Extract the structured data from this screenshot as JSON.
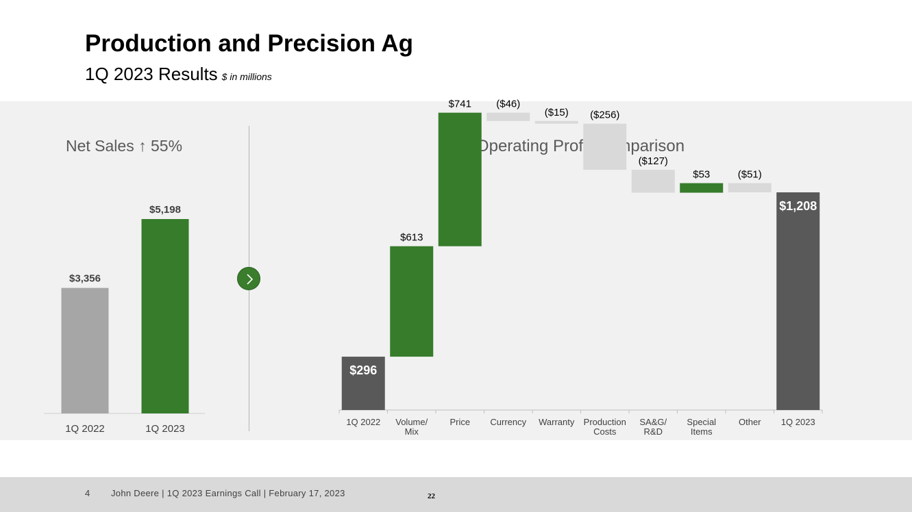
{
  "header": {
    "title": "Production and Precision Ag",
    "subtitle": "1Q 2023 Results",
    "units": "$ in millions"
  },
  "left_panel": {
    "title": "Net Sales ↑ 55%",
    "arrow_icon": "right-chevron-icon"
  },
  "right_panel": {
    "title": "Operating Profit Comparison"
  },
  "chart_data": [
    {
      "type": "bar",
      "title": "Net Sales ↑ 55%",
      "categories": [
        "1Q 2022",
        "1Q 2023"
      ],
      "values": [
        3356,
        5198
      ],
      "labels": [
        "$3,356",
        "$5,198"
      ],
      "colors": [
        "#a6a6a6",
        "#367c2b"
      ],
      "ylim": [
        0,
        5198
      ]
    },
    {
      "type": "waterfall",
      "title": "Operating Profit Comparison",
      "categories": [
        [
          "1Q 2022"
        ],
        [
          "Volume/",
          "Mix"
        ],
        [
          "Price"
        ],
        [
          "Currency"
        ],
        [
          "Warranty"
        ],
        [
          "Production",
          "Costs"
        ],
        [
          "SA&G/",
          "R&D"
        ],
        [
          "Special",
          "Items"
        ],
        [
          "Other"
        ],
        [
          "1Q 2023"
        ]
      ],
      "steps": [
        {
          "kind": "total",
          "value": 296,
          "label": "$296"
        },
        {
          "kind": "delta",
          "value": 613,
          "label": "$613"
        },
        {
          "kind": "delta",
          "value": 741,
          "label": "$741"
        },
        {
          "kind": "delta",
          "value": -46,
          "label": "($46)"
        },
        {
          "kind": "delta",
          "value": -15,
          "label": "($15)"
        },
        {
          "kind": "delta",
          "value": -256,
          "label": "($256)"
        },
        {
          "kind": "delta",
          "value": -127,
          "label": "($127)"
        },
        {
          "kind": "delta",
          "value": 53,
          "label": "$53"
        },
        {
          "kind": "delta",
          "value": -51,
          "label": "($51)"
        },
        {
          "kind": "total",
          "value": 1208,
          "label": "$1,208"
        }
      ],
      "colors": {
        "total": "#595959",
        "increase": "#367c2b",
        "decrease": "#d9d9d9"
      },
      "ylim": [
        0,
        1650
      ]
    }
  ],
  "footer": {
    "page": "4",
    "text": "John Deere | 1Q 2023 Earnings Call | February 17, 2023",
    "number": "22"
  }
}
